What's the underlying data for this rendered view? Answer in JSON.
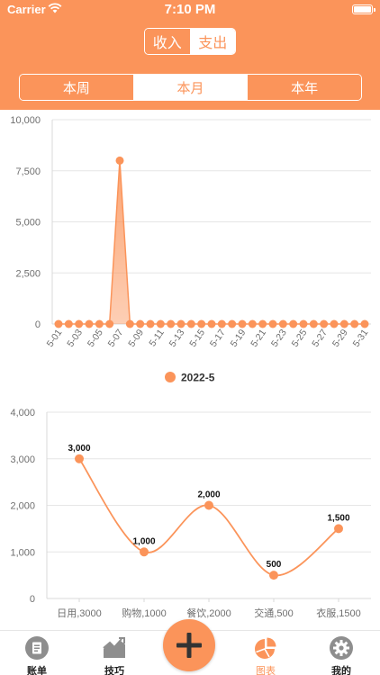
{
  "status_bar": {
    "carrier": "Carrier",
    "time": "7:10 PM"
  },
  "type_switch": {
    "options": [
      "收入",
      "支出"
    ],
    "selected": "收入"
  },
  "period_tabs": {
    "options": [
      "本周",
      "本月",
      "本年"
    ],
    "selected": "本月"
  },
  "colors": {
    "accent": "#FB945A",
    "tab_gray": "#8E8E8E",
    "axis_text": "#6F6F6F"
  },
  "chart_data": [
    {
      "type": "area",
      "legend": "2022-5",
      "legend_position": "bottom",
      "x": [
        "5-01",
        "5-02",
        "5-03",
        "5-04",
        "5-05",
        "5-06",
        "5-07",
        "5-08",
        "5-09",
        "5-10",
        "5-11",
        "5-12",
        "5-13",
        "5-14",
        "5-15",
        "5-16",
        "5-17",
        "5-18",
        "5-19",
        "5-20",
        "5-21",
        "5-22",
        "5-23",
        "5-24",
        "5-25",
        "5-26",
        "5-27",
        "5-28",
        "5-29",
        "5-30",
        "5-31"
      ],
      "x_tick_labels": [
        "5-01",
        "5-03",
        "5-05",
        "5-07",
        "5-09",
        "5-11",
        "5-13",
        "5-15",
        "5-17",
        "5-19",
        "5-21",
        "5-23",
        "5-25",
        "5-27",
        "5-29",
        "5-31"
      ],
      "values": [
        0,
        0,
        0,
        0,
        0,
        0,
        8000,
        0,
        0,
        0,
        0,
        0,
        0,
        0,
        0,
        0,
        0,
        0,
        0,
        0,
        0,
        0,
        0,
        0,
        0,
        0,
        0,
        0,
        0,
        0,
        0
      ],
      "ylim": [
        0,
        10000
      ],
      "y_ticks": [
        "0",
        "2,500",
        "5,000",
        "7,500",
        "10,000"
      ],
      "grid": true
    },
    {
      "type": "line",
      "smooth": true,
      "categories": [
        "日用,3000",
        "购物,1000",
        "餐饮,2000",
        "交通,500",
        "衣服,1500"
      ],
      "values": [
        3000,
        1000,
        2000,
        500,
        1500
      ],
      "data_labels": [
        "3,000",
        "1,000",
        "2,000",
        "500",
        "1,500"
      ],
      "ylim": [
        0,
        4000
      ],
      "y_ticks": [
        "0",
        "1,000",
        "2,000",
        "3,000",
        "4,000"
      ],
      "grid": true
    }
  ],
  "tab_bar": {
    "items": [
      {
        "label": "账单",
        "icon": "bill-icon"
      },
      {
        "label": "技巧",
        "icon": "trend-icon"
      },
      {
        "label": "",
        "icon": "plus-icon"
      },
      {
        "label": "图表",
        "icon": "pie-chart-icon"
      },
      {
        "label": "我的",
        "icon": "gear-icon"
      }
    ],
    "selected": "图表"
  }
}
